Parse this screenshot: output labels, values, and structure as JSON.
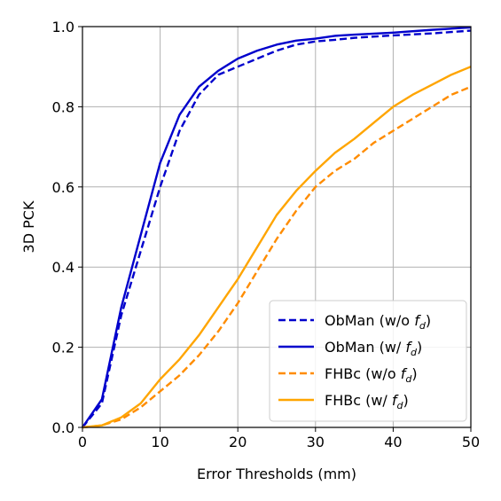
{
  "chart_data": {
    "type": "line",
    "title": "",
    "xlabel": "Error Thresholds (mm)",
    "ylabel": "3D PCK",
    "xlim": [
      0,
      50
    ],
    "ylim": [
      0,
      1.0
    ],
    "xticks": [
      "0",
      "10",
      "20",
      "30",
      "40",
      "50"
    ],
    "yticks": [
      "0.0",
      "0.2",
      "0.4",
      "0.6",
      "0.8",
      "1.0"
    ],
    "grid": true,
    "legend_position": "lower-right",
    "series": [
      {
        "name": "ObMan (w/o f_d)",
        "legend_prefix": "ObMan (w/o ",
        "legend_var": "f",
        "legend_sub": "d",
        "legend_suffix": ")",
        "color": "#0000cc",
        "dash": true,
        "x": [
          0,
          2.5,
          5,
          7.5,
          10,
          12.5,
          15,
          17.5,
          20,
          22.5,
          25,
          27.5,
          30,
          32.5,
          35,
          40,
          45,
          50
        ],
        "y": [
          0,
          0.06,
          0.28,
          0.44,
          0.6,
          0.74,
          0.83,
          0.88,
          0.9,
          0.92,
          0.94,
          0.955,
          0.963,
          0.967,
          0.972,
          0.978,
          0.983,
          0.99
        ]
      },
      {
        "name": "ObMan (w/ f_d)",
        "legend_prefix": "ObMan (w/ ",
        "legend_var": "f",
        "legend_sub": "d",
        "legend_suffix": ")",
        "color": "#0000cc",
        "dash": false,
        "x": [
          0,
          2.5,
          5,
          7.5,
          10,
          12.5,
          15,
          17.5,
          20,
          22.5,
          25,
          27.5,
          30,
          32.5,
          35,
          40,
          45,
          50
        ],
        "y": [
          0,
          0.07,
          0.3,
          0.48,
          0.66,
          0.78,
          0.85,
          0.89,
          0.92,
          0.94,
          0.955,
          0.965,
          0.97,
          0.977,
          0.98,
          0.985,
          0.992,
          0.998
        ]
      },
      {
        "name": "FHBc (w/o f_d)",
        "legend_prefix": "FHBc (w/o ",
        "legend_var": "f",
        "legend_sub": "d",
        "legend_suffix": ")",
        "color": "#ff8c00",
        "dash": true,
        "x": [
          0,
          2.5,
          5,
          7.5,
          10,
          12.5,
          15,
          17.5,
          20,
          22.5,
          25,
          27.5,
          30,
          32.5,
          35,
          37.5,
          40,
          42.5,
          45,
          47.5,
          50
        ],
        "y": [
          0,
          0.005,
          0.02,
          0.05,
          0.09,
          0.13,
          0.18,
          0.24,
          0.31,
          0.39,
          0.47,
          0.54,
          0.6,
          0.64,
          0.67,
          0.71,
          0.74,
          0.77,
          0.8,
          0.83,
          0.85
        ]
      },
      {
        "name": "FHBc (w/ f_d)",
        "legend_prefix": "FHBc (w/ ",
        "legend_var": "f",
        "legend_sub": "d",
        "legend_suffix": ")",
        "color": "#ffa500",
        "dash": false,
        "x": [
          0,
          2.5,
          5,
          7.5,
          10,
          12.5,
          15,
          17.5,
          20,
          22.5,
          25,
          27.5,
          30,
          32.5,
          35,
          37.5,
          40,
          42.5,
          45,
          47.5,
          50
        ],
        "y": [
          0,
          0.005,
          0.025,
          0.06,
          0.12,
          0.17,
          0.23,
          0.3,
          0.37,
          0.45,
          0.53,
          0.59,
          0.64,
          0.685,
          0.72,
          0.76,
          0.8,
          0.83,
          0.855,
          0.88,
          0.9
        ]
      }
    ]
  }
}
